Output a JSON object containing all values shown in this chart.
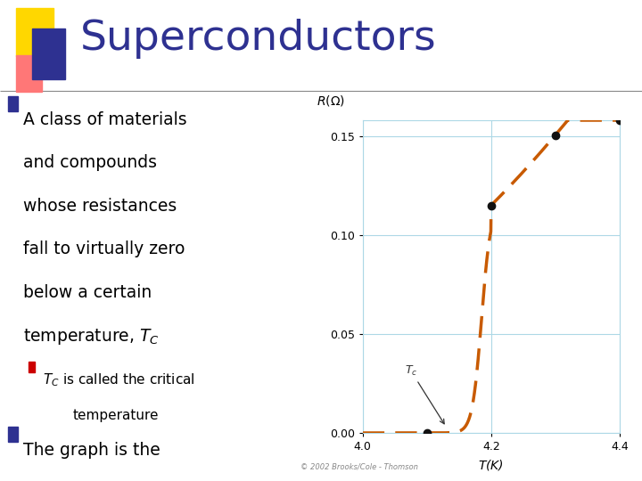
{
  "title": "Superconductors",
  "title_color": "#2E3191",
  "background_color": "#FFFFFF",
  "graph_ylabel": "$R(\\Omega)$",
  "graph_xlabel": "$T$(K)",
  "graph_xlim": [
    4.0,
    4.4
  ],
  "graph_ylim": [
    0.0,
    0.158
  ],
  "graph_yticks": [
    0.0,
    0.05,
    0.1,
    0.15
  ],
  "graph_xticks": [
    4.0,
    4.2,
    4.4
  ],
  "curve_color": "#C85A00",
  "grid_color": "#ADD8E6",
  "dot_color": "#111111",
  "copyright": "© 2002 Brooks/Cole - Thomson",
  "logo_yellow": "#FFD700",
  "logo_pink": "#FF7777",
  "logo_blue": "#2E3191",
  "bullet_blue": "#2E3191",
  "bullet_red": "#CC0000",
  "text_color": "#000000",
  "line_color": "#888888"
}
